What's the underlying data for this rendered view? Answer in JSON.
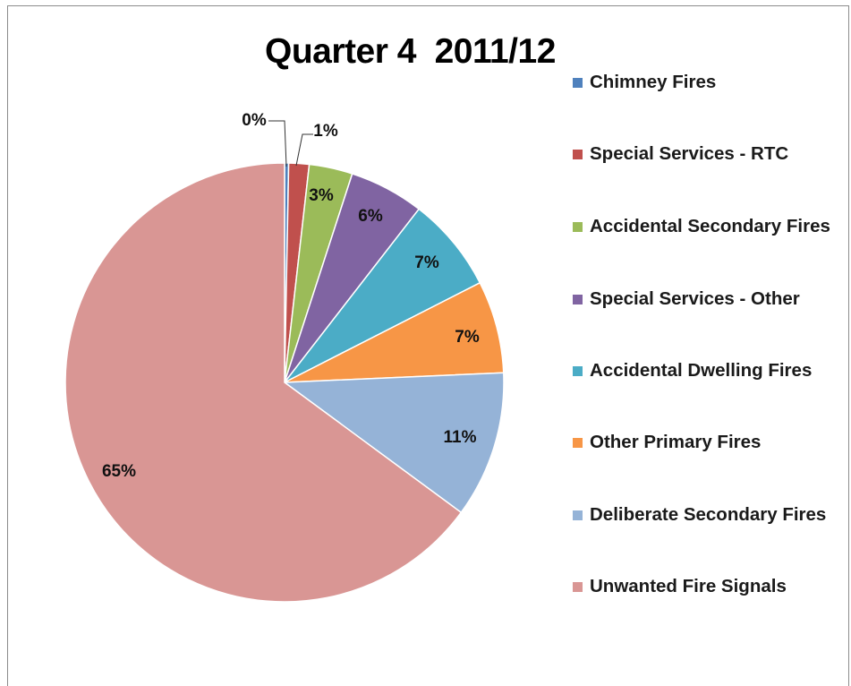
{
  "chart_data": {
    "type": "pie",
    "title": "Quarter 4  2011/12",
    "legend_position": "right",
    "slices": [
      {
        "label": "Chimney Fires",
        "value": 0.3,
        "display": "0%",
        "color": "#4f81bd"
      },
      {
        "label": "Special Services - RTC",
        "value": 1.5,
        "display": "1%",
        "color": "#c0504d"
      },
      {
        "label": "Accidental Secondary Fires",
        "value": 3.2,
        "display": "3%",
        "color": "#9bbb59"
      },
      {
        "label": "Special Services - Other",
        "value": 5.5,
        "display": "6%",
        "color": "#8064a2"
      },
      {
        "label": "Accidental Dwelling Fires",
        "value": 7.0,
        "display": "7%",
        "color": "#4bacc6"
      },
      {
        "label": "Other Primary Fires",
        "value": 6.8,
        "display": "7%",
        "color": "#f79646"
      },
      {
        "label": "Deliberate Secondary Fires",
        "value": 10.8,
        "display": "11%",
        "color": "#95b3d7"
      },
      {
        "label": "Unwanted Fire Signals",
        "value": 64.9,
        "display": "65%",
        "color": "#d99694"
      }
    ]
  }
}
